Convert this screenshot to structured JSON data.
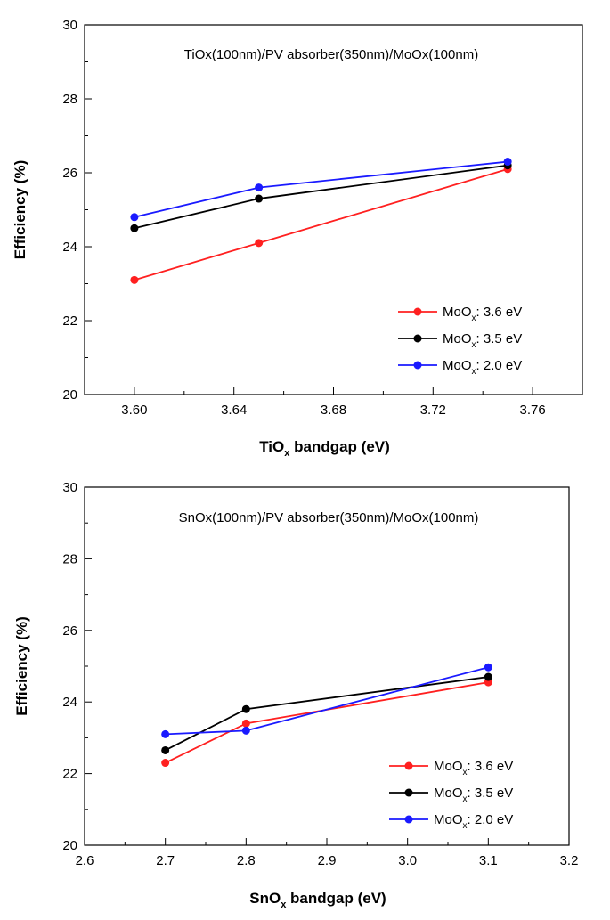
{
  "chart_data": [
    {
      "type": "line",
      "title": "TiOx(100nm)/PV absorber(350nm)/MoOx(100nm)",
      "xlabel": {
        "main": "TiO",
        "sub": "x",
        "rest": " bandgap (eV)"
      },
      "ylabel": "Efficiency (%)",
      "xlim": [
        3.58,
        3.78
      ],
      "ylim": [
        20,
        30
      ],
      "xticks": [
        "3.60",
        "3.64",
        "3.68",
        "3.72",
        "3.76"
      ],
      "xtick_values": [
        3.6,
        3.64,
        3.68,
        3.72,
        3.76
      ],
      "yticks": [
        "20",
        "22",
        "24",
        "26",
        "28",
        "30"
      ],
      "ytick_values": [
        20,
        22,
        24,
        26,
        28,
        30
      ],
      "x": [
        3.6,
        3.65,
        3.75
      ],
      "legend_position": "bottom-right",
      "series": [
        {
          "name": "MoOx: 3.6 eV",
          "label_main": "MoO",
          "label_sub": "x",
          "label_rest": ": 3.6 eV",
          "color": "#ff2020",
          "values": [
            23.1,
            24.1,
            26.1
          ]
        },
        {
          "name": "MoOx: 3.5 eV",
          "label_main": "MoO",
          "label_sub": "x",
          "label_rest": ": 3.5 eV",
          "color": "#000000",
          "values": [
            24.5,
            25.3,
            26.2
          ]
        },
        {
          "name": "MoOx: 2.0 eV",
          "label_main": "MoO",
          "label_sub": "x",
          "label_rest": ": 2.0 eV",
          "color": "#1a1aff",
          "values": [
            24.8,
            25.6,
            26.3
          ]
        }
      ]
    },
    {
      "type": "line",
      "title": "SnOx(100nm)/PV absorber(350nm)/MoOx(100nm)",
      "xlabel": {
        "main": "SnO",
        "sub": "x",
        "rest": " bandgap (eV)"
      },
      "ylabel": "Efficiency (%)",
      "xlim": [
        2.6,
        3.2
      ],
      "ylim": [
        20,
        30
      ],
      "xticks": [
        "2.6",
        "2.7",
        "2.8",
        "2.9",
        "3.0",
        "3.1",
        "3.2"
      ],
      "xtick_values": [
        2.6,
        2.7,
        2.8,
        2.9,
        3.0,
        3.1,
        3.2
      ],
      "yticks": [
        "20",
        "22",
        "24",
        "26",
        "28",
        "30"
      ],
      "ytick_values": [
        20,
        22,
        24,
        26,
        28,
        30
      ],
      "x": [
        2.7,
        2.8,
        3.1
      ],
      "legend_position": "bottom-right",
      "series": [
        {
          "name": "MoOx: 3.6 eV",
          "label_main": "MoO",
          "label_sub": "x",
          "label_rest": ": 3.6 eV",
          "color": "#ff2020",
          "values": [
            22.3,
            23.4,
            24.55
          ]
        },
        {
          "name": "MoOx: 3.5 eV",
          "label_main": "MoO",
          "label_sub": "x",
          "label_rest": ": 3.5 eV",
          "color": "#000000",
          "values": [
            22.65,
            23.8,
            24.7
          ]
        },
        {
          "name": "MoOx: 2.0 eV",
          "label_main": "MoO",
          "label_sub": "x",
          "label_rest": ": 2.0 eV",
          "color": "#1a1aff",
          "values": [
            23.1,
            23.2,
            24.97
          ]
        }
      ]
    }
  ]
}
